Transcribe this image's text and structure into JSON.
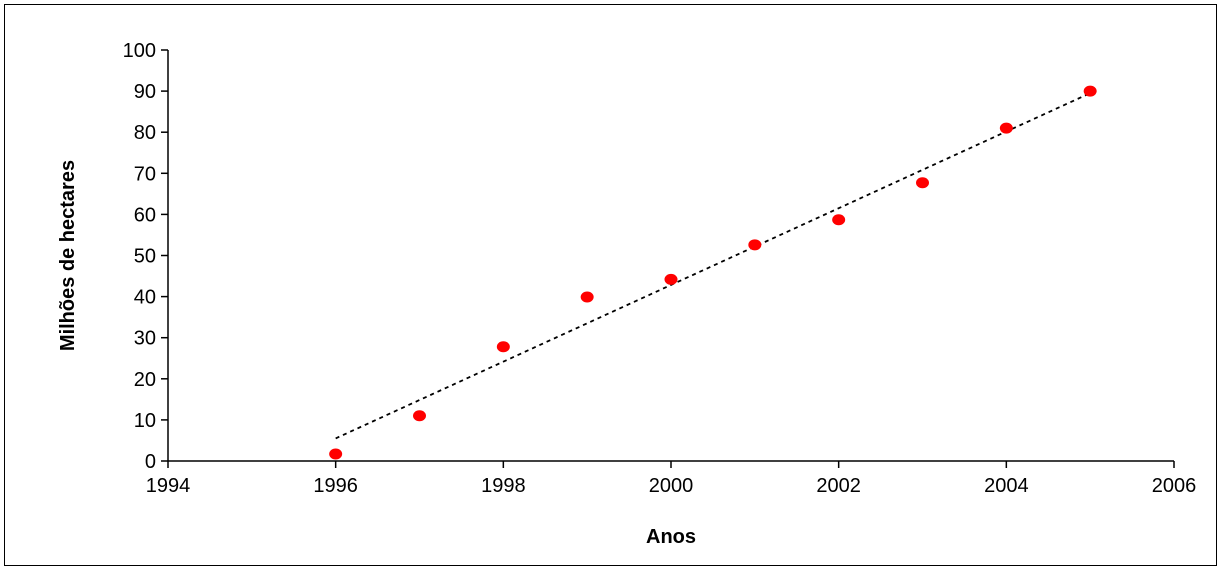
{
  "chart_data": {
    "type": "scatter",
    "title": "",
    "xlabel": "Anos",
    "ylabel": "Milhões de hectares",
    "xlim": [
      1994,
      2006
    ],
    "ylim": [
      0,
      100
    ],
    "x_ticks": [
      1994,
      1996,
      1998,
      2000,
      2002,
      2004,
      2006
    ],
    "y_ticks": [
      0,
      10,
      20,
      30,
      40,
      50,
      60,
      70,
      80,
      90,
      100
    ],
    "grid": false,
    "legend": "none",
    "series": [
      {
        "x": [
          1996,
          1997,
          1998,
          1999,
          2000,
          2001,
          2002,
          2003,
          2004,
          2005
        ],
        "y": [
          1.7,
          11,
          27.8,
          39.9,
          44.2,
          52.6,
          58.7,
          67.7,
          81,
          90
        ],
        "color": "#ff0000"
      }
    ],
    "trendline": {
      "style": "dotted",
      "color": "#000000",
      "x": [
        1996,
        2005
      ],
      "y": [
        5.5,
        89.5
      ]
    }
  }
}
